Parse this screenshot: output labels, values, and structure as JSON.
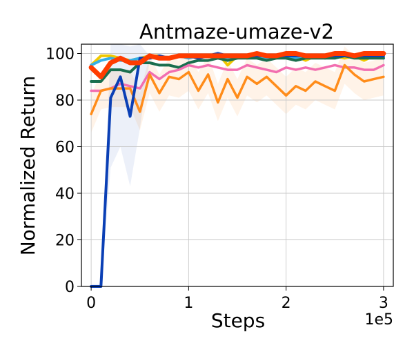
{
  "chart_data": {
    "type": "line",
    "title": "Antmaze-umaze-v2",
    "xlabel": "Steps",
    "ylabel": "Normalized Return",
    "x_offset_label": "1e5",
    "xlim": [
      -0.1,
      3.1
    ],
    "ylim": [
      0,
      104
    ],
    "x_ticks": [
      0,
      1,
      2,
      3
    ],
    "x_tick_labels": [
      "0",
      "1",
      "2",
      "3"
    ],
    "y_ticks": [
      0,
      20,
      40,
      60,
      80,
      100
    ],
    "y_tick_labels": [
      "0",
      "20",
      "40",
      "60",
      "80",
      "100"
    ],
    "grid": true,
    "x": [
      0,
      0.1,
      0.2,
      0.3,
      0.4,
      0.5,
      0.6,
      0.7,
      0.8,
      0.9,
      1.0,
      1.1,
      1.2,
      1.3,
      1.4,
      1.5,
      1.6,
      1.7,
      1.8,
      1.9,
      2.0,
      2.1,
      2.2,
      2.3,
      2.4,
      2.5,
      2.6,
      2.7,
      2.8,
      2.9,
      3.0
    ],
    "series": [
      {
        "color": "#f0c800",
        "values": [
          95,
          99,
          99,
          98,
          97,
          98,
          99,
          99,
          98,
          99,
          99,
          98,
          99,
          100,
          95,
          99,
          98,
          99,
          99,
          98,
          99,
          99,
          97,
          99,
          98,
          99,
          98,
          99,
          97,
          99,
          99
        ]
      },
      {
        "color": "#33b0e8",
        "values": [
          95,
          97,
          98,
          97,
          97,
          98,
          98,
          99,
          98,
          99,
          98,
          99,
          99,
          99,
          98,
          98,
          99,
          99,
          98,
          99,
          99,
          98,
          99,
          99,
          98,
          99,
          99,
          99,
          98,
          99,
          98
        ]
      },
      {
        "color": "#1a6e4e",
        "values": [
          88,
          88,
          93,
          93,
          92,
          96,
          96,
          95,
          95,
          94,
          96,
          97,
          97,
          98,
          97,
          98,
          98,
          98,
          97,
          98,
          98,
          97,
          98,
          98,
          98,
          98,
          99,
          98,
          98,
          98,
          98
        ]
      },
      {
        "color": "#f26eb0",
        "values": [
          84,
          84,
          85,
          87,
          86,
          85,
          92,
          89,
          92,
          93,
          95,
          94,
          95,
          94,
          93,
          93,
          95,
          94,
          93,
          92,
          94,
          93,
          94,
          93,
          94,
          95,
          94,
          94,
          93,
          93,
          95
        ]
      },
      {
        "color": "#ff8c1a",
        "values": [
          74,
          84,
          85,
          85,
          85,
          75,
          91,
          83,
          90,
          89,
          92,
          84,
          91,
          79,
          89,
          81,
          90,
          87,
          90,
          86,
          82,
          86,
          84,
          88,
          86,
          84,
          95,
          91,
          88,
          89,
          90
        ]
      },
      {
        "color": "#0a3fb5",
        "values": [
          0,
          0,
          81,
          90,
          73,
          98,
          98,
          99,
          98,
          99,
          99,
          98,
          99,
          100,
          99,
          99,
          99,
          99,
          99,
          99,
          99,
          99,
          99,
          99,
          99,
          99,
          99,
          99,
          99,
          99,
          99
        ]
      },
      {
        "color": "#ff3c00",
        "values": [
          94,
          90,
          96,
          98,
          96,
          96,
          99,
          98,
          98,
          99,
          99,
          99,
          99,
          99,
          99,
          99,
          99,
          100,
          99,
          99,
          100,
          100,
          99,
          99,
          99,
          100,
          100,
          99,
          100,
          100,
          100
        ]
      }
    ]
  }
}
